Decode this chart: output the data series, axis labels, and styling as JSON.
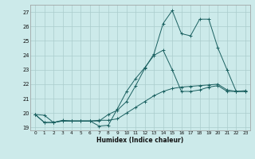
{
  "xlabel": "Humidex (Indice chaleur)",
  "bg_color": "#cceaea",
  "grid_color": "#aacccc",
  "line_color": "#1a6060",
  "xlim": [
    -0.5,
    23.5
  ],
  "ylim": [
    18.8,
    27.5
  ],
  "xticks": [
    0,
    1,
    2,
    3,
    4,
    5,
    6,
    7,
    8,
    9,
    10,
    11,
    12,
    13,
    14,
    15,
    16,
    17,
    18,
    19,
    20,
    21,
    22,
    23
  ],
  "yticks": [
    19,
    20,
    21,
    22,
    23,
    24,
    25,
    26,
    27
  ],
  "line1_x": [
    0,
    1,
    2,
    3,
    4,
    5,
    6,
    7,
    8,
    9,
    10,
    11,
    12,
    13,
    14,
    15,
    16,
    17,
    18,
    19,
    20,
    21,
    22,
    23
  ],
  "line1_y": [
    19.9,
    19.85,
    19.35,
    19.5,
    19.45,
    19.45,
    19.45,
    19.5,
    19.5,
    19.6,
    20.0,
    20.4,
    20.8,
    21.2,
    21.5,
    21.7,
    21.8,
    21.85,
    21.9,
    21.95,
    22.0,
    21.6,
    21.5,
    21.5
  ],
  "line2_x": [
    0,
    1,
    2,
    3,
    4,
    5,
    6,
    7,
    8,
    9,
    10,
    11,
    12,
    13,
    14,
    15,
    16,
    17,
    18,
    19,
    20,
    21,
    22,
    23
  ],
  "line2_y": [
    19.9,
    19.35,
    19.35,
    19.45,
    19.45,
    19.45,
    19.45,
    19.1,
    19.15,
    20.3,
    21.5,
    22.4,
    23.15,
    24.0,
    24.35,
    23.0,
    21.5,
    21.5,
    21.6,
    21.8,
    21.9,
    21.5,
    21.5,
    21.5
  ],
  "line3_x": [
    0,
    1,
    2,
    3,
    4,
    5,
    6,
    7,
    8,
    9,
    10,
    11,
    12,
    13,
    14,
    15,
    16,
    17,
    18,
    19,
    20,
    21,
    22,
    23
  ],
  "line3_y": [
    19.9,
    19.35,
    19.35,
    19.45,
    19.45,
    19.45,
    19.45,
    19.45,
    19.9,
    20.2,
    20.8,
    21.9,
    23.1,
    24.1,
    26.2,
    27.1,
    25.5,
    25.35,
    26.5,
    26.5,
    24.5,
    23.0,
    21.5,
    21.55
  ]
}
